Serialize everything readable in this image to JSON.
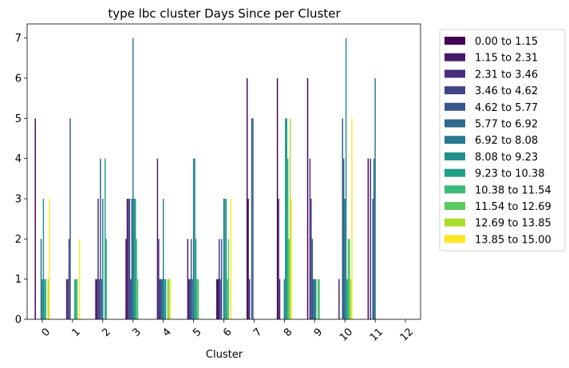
{
  "chart_data": {
    "type": "bar",
    "title": "type lbc cluster Days Since per Cluster",
    "xlabel": "Cluster",
    "ylabel": "",
    "ylim": [
      0,
      7.35
    ],
    "yticks": [
      0,
      1,
      2,
      3,
      4,
      5,
      6,
      7
    ],
    "grid": false,
    "legend_position": "outside-right-top",
    "categories": [
      "0",
      "1",
      "2",
      "3",
      "4",
      "5",
      "6",
      "7",
      "8",
      "9",
      "10",
      "11",
      "12"
    ],
    "series": [
      {
        "name": "0.00 to 1.15",
        "color": "#440154",
        "values": [
          5,
          0,
          1,
          2,
          0,
          0,
          1,
          6,
          6,
          6,
          0,
          4,
          0
        ]
      },
      {
        "name": "1.15 to 2.31",
        "color": "#481a6c",
        "values": [
          0,
          1,
          1,
          3,
          4,
          2,
          1,
          3,
          3,
          0,
          1,
          0,
          0
        ]
      },
      {
        "name": "2.31 to 3.46",
        "color": "#472f7d",
        "values": [
          0,
          1,
          3,
          3,
          2,
          1,
          2,
          1,
          1,
          4,
          0,
          4,
          0
        ]
      },
      {
        "name": "3.46 to 4.62",
        "color": "#414487",
        "values": [
          0,
          2,
          1,
          3,
          1,
          1,
          1,
          0,
          0,
          3,
          0,
          0,
          0
        ]
      },
      {
        "name": "4.62 to 5.77",
        "color": "#39568c",
        "values": [
          0,
          5,
          4,
          1,
          1,
          2,
          2,
          5,
          0,
          2,
          5,
          3,
          0
        ]
      },
      {
        "name": "5.77 to 6.92",
        "color": "#31688e",
        "values": [
          2,
          0,
          1,
          3,
          1,
          1,
          0,
          5,
          0,
          1,
          4,
          4,
          0
        ]
      },
      {
        "name": "6.92 to 8.08",
        "color": "#2a788e",
        "values": [
          1,
          0,
          3,
          7,
          3,
          4,
          3,
          0,
          1,
          1,
          3,
          6,
          0
        ]
      },
      {
        "name": "8.08 to 9.23",
        "color": "#21918c",
        "values": [
          3,
          0,
          0,
          3,
          1,
          4,
          3,
          0,
          5,
          1,
          7,
          0,
          0
        ]
      },
      {
        "name": "9.23 to 10.38",
        "color": "#1fa088",
        "values": [
          1,
          1,
          4,
          3,
          1,
          2,
          3,
          0,
          5,
          0,
          1,
          0,
          0
        ]
      },
      {
        "name": "10.38 to 11.54",
        "color": "#3bbb75",
        "values": [
          1,
          1,
          2,
          2,
          0,
          1,
          1,
          0,
          4,
          1,
          2,
          0,
          0
        ]
      },
      {
        "name": "11.54 to 12.69",
        "color": "#5ec962",
        "values": [
          0,
          1,
          0,
          1,
          1,
          1,
          2,
          0,
          2,
          1,
          2,
          0,
          0
        ]
      },
      {
        "name": "12.69 to 13.85",
        "color": "#addc30",
        "values": [
          1,
          0,
          0,
          0,
          1,
          0,
          0,
          0,
          5,
          0,
          1,
          0,
          0
        ]
      },
      {
        "name": "13.85 to 15.00",
        "color": "#fde725",
        "values": [
          3,
          2,
          0,
          0,
          1,
          0,
          3,
          0,
          3,
          0,
          5,
          0,
          0
        ]
      }
    ]
  }
}
